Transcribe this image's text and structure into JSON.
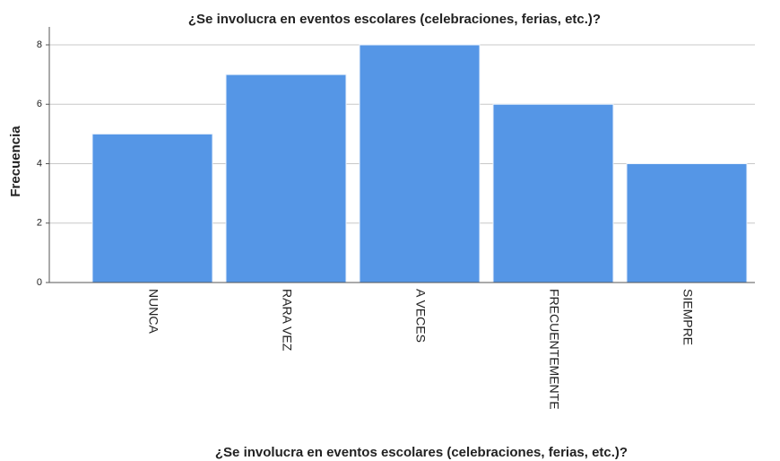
{
  "chart_data": {
    "type": "bar",
    "title": "¿Se involucra en eventos escolares (celebraciones, ferias, etc.)?",
    "x_label": "¿Se involucra en eventos escolares (celebraciones, ferias, etc.)?",
    "y_label": "Frecuencia",
    "categories": [
      "NUNCA",
      "RARA VEZ",
      "A VECES",
      "FRECUENTEMENTE",
      "SIEMPRE"
    ],
    "values": [
      5,
      7,
      8,
      6,
      4
    ],
    "color": "#5596e6",
    "ylim": [
      0,
      8
    ],
    "yticks": [
      0,
      2,
      4,
      6,
      8
    ],
    "grid": true
  }
}
